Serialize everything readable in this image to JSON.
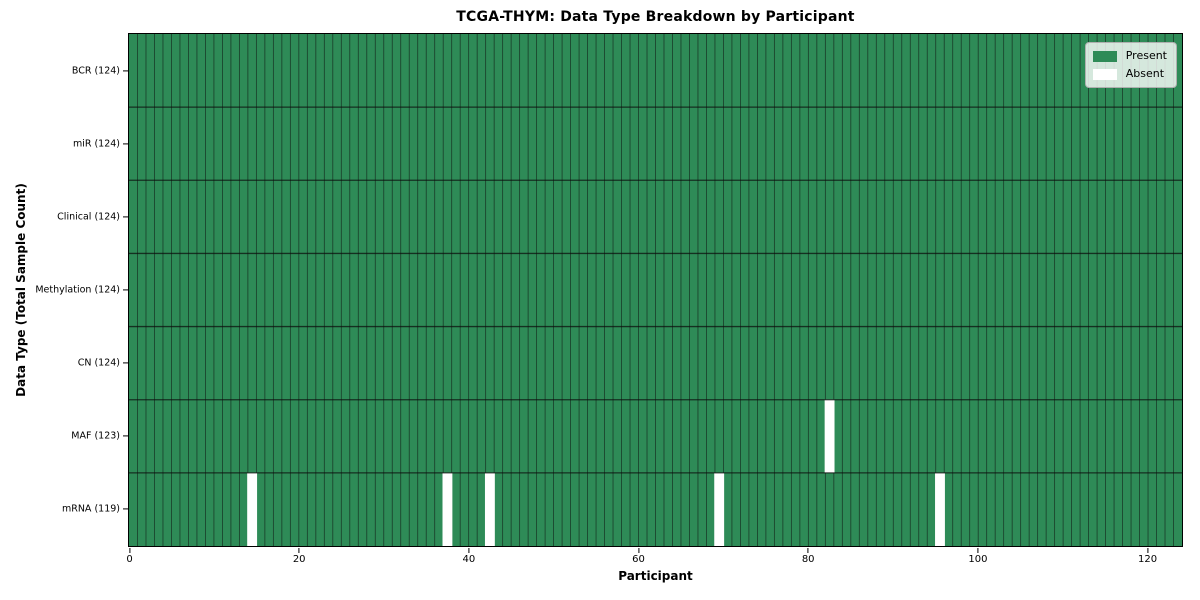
{
  "chart_data": {
    "type": "heatmap",
    "title": "TCGA-THYM: Data Type Breakdown by Participant",
    "xlabel": "Participant",
    "ylabel": "Data Type (Total Sample Count)",
    "n_participants": 124,
    "x_range": [
      0,
      124
    ],
    "x_ticks": [
      0,
      20,
      40,
      60,
      80,
      100,
      120
    ],
    "rows": [
      {
        "label": "BCR (124)",
        "total": 124,
        "absent_participants": []
      },
      {
        "label": "miR (124)",
        "total": 124,
        "absent_participants": []
      },
      {
        "label": "Clinical (124)",
        "total": 124,
        "absent_participants": []
      },
      {
        "label": "Methylation (124)",
        "total": 124,
        "absent_participants": []
      },
      {
        "label": "CN (124)",
        "total": 124,
        "absent_participants": []
      },
      {
        "label": "MAF (123)",
        "total": 123,
        "absent_participants": [
          82
        ]
      },
      {
        "label": "mRNA (119)",
        "total": 119,
        "absent_participants": [
          14,
          37,
          42,
          69,
          95
        ]
      }
    ],
    "legend": [
      {
        "label": "Present",
        "color": "#2e8b57"
      },
      {
        "label": "Absent",
        "color": "#ffffff"
      }
    ],
    "legend_position": "upper right",
    "grid": true,
    "colors": {
      "present": "#2e8b57",
      "absent": "#ffffff",
      "grid_line": "#0d0d0d",
      "frame": "#000000",
      "legend_border": "#b0b0b0"
    }
  }
}
